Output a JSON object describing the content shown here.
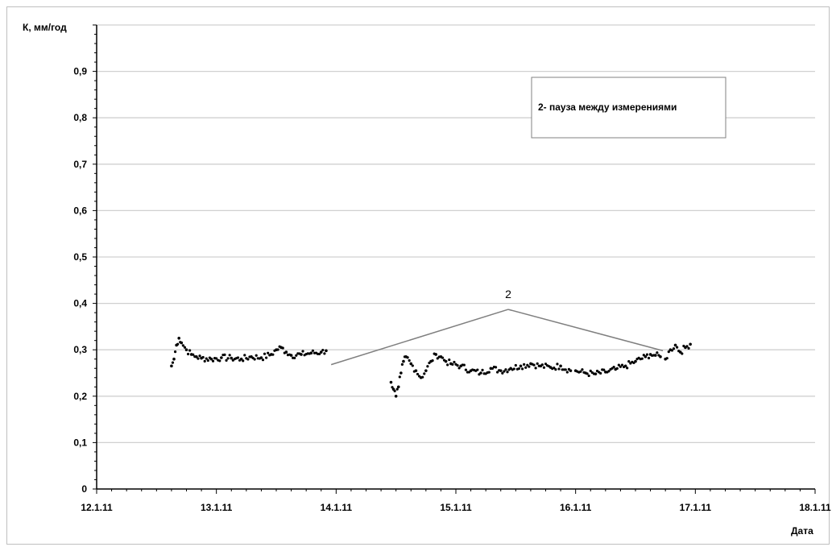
{
  "chart_data": {
    "type": "scatter",
    "ylabel": "К, мм/год",
    "xlabel": "Дата",
    "ylim": [
      0,
      1.0
    ],
    "yticks": [
      "0",
      "0,1",
      "0,2",
      "0,3",
      "0,4",
      "0,5",
      "0,6",
      "0,7",
      "0,8",
      "0,9"
    ],
    "xlim": [
      "12.1.11",
      "18.1.11"
    ],
    "xticks": [
      "12.1.11",
      "13.1.11",
      "14.1.11",
      "15.1.11",
      "16.1.11",
      "17.1.11",
      "18.1.11"
    ],
    "grid": true,
    "legend_text": "2- пауза между измерениями",
    "annotation": {
      "label": "2",
      "apex": [
        "15.1.11 10:30",
        0.387
      ],
      "left_end": [
        "13.1.11 23:00",
        0.268
      ],
      "right_end": [
        "16.1.11 17:30",
        0.298
      ]
    },
    "series": [
      {
        "segments": [
          {
            "x_start": "12.1.11 15:00",
            "x_end": "13.1.11 22:00",
            "points": [
              [
                0,
                0.265
              ],
              [
                0.5,
                0.28
              ],
              [
                1,
                0.31
              ],
              [
                1.5,
                0.325
              ],
              [
                2,
                0.315
              ],
              [
                3,
                0.3
              ],
              [
                4,
                0.29
              ],
              [
                5,
                0.285
              ],
              [
                6,
                0.282
              ],
              [
                8,
                0.28
              ],
              [
                10,
                0.283
              ],
              [
                12,
                0.282
              ],
              [
                14,
                0.28
              ],
              [
                16,
                0.285
              ],
              [
                18,
                0.283
              ],
              [
                20,
                0.29
              ],
              [
                21,
                0.3
              ],
              [
                22,
                0.305
              ],
              [
                23,
                0.295
              ],
              [
                24,
                0.288
              ],
              [
                26,
                0.29
              ],
              [
                28,
                0.293
              ],
              [
                30,
                0.295
              ],
              [
                31,
                0.298
              ]
            ]
          },
          {
            "x_start": "14.1.11 11:00",
            "x_end": "15.1.11 23:00",
            "points": [
              [
                0,
                0.23
              ],
              [
                0.5,
                0.215
              ],
              [
                1,
                0.2
              ],
              [
                1.5,
                0.22
              ],
              [
                2,
                0.25
              ],
              [
                2.5,
                0.275
              ],
              [
                3,
                0.285
              ],
              [
                4,
                0.27
              ],
              [
                5,
                0.255
              ],
              [
                6,
                0.24
              ],
              [
                7,
                0.255
              ],
              [
                8,
                0.275
              ],
              [
                9,
                0.29
              ],
              [
                10,
                0.285
              ],
              [
                11,
                0.275
              ],
              [
                12,
                0.27
              ],
              [
                14,
                0.265
              ],
              [
                16,
                0.255
              ],
              [
                18,
                0.25
              ],
              [
                20,
                0.26
              ],
              [
                22,
                0.255
              ],
              [
                24,
                0.26
              ],
              [
                26,
                0.265
              ],
              [
                28,
                0.27
              ],
              [
                30,
                0.265
              ],
              [
                32,
                0.262
              ],
              [
                34,
                0.265
              ],
              [
                36,
                0.255
              ]
            ]
          },
          {
            "x_start": "16.1.11 00:00",
            "x_end": "16.1.11 17:00",
            "points": [
              [
                0,
                0.255
              ],
              [
                2,
                0.25
              ],
              [
                4,
                0.248
              ],
              [
                6,
                0.252
              ],
              [
                8,
                0.258
              ],
              [
                10,
                0.265
              ],
              [
                12,
                0.275
              ],
              [
                14,
                0.285
              ],
              [
                15,
                0.29
              ],
              [
                16,
                0.288
              ],
              [
                17,
                0.285
              ]
            ]
          },
          {
            "x_start": "16.1.11 18:00",
            "x_end": "16.1.11 23:00",
            "points": [
              [
                0,
                0.28
              ],
              [
                1,
                0.3
              ],
              [
                2,
                0.31
              ],
              [
                3,
                0.295
              ],
              [
                4,
                0.305
              ],
              [
                5,
                0.312
              ]
            ]
          }
        ]
      }
    ]
  }
}
